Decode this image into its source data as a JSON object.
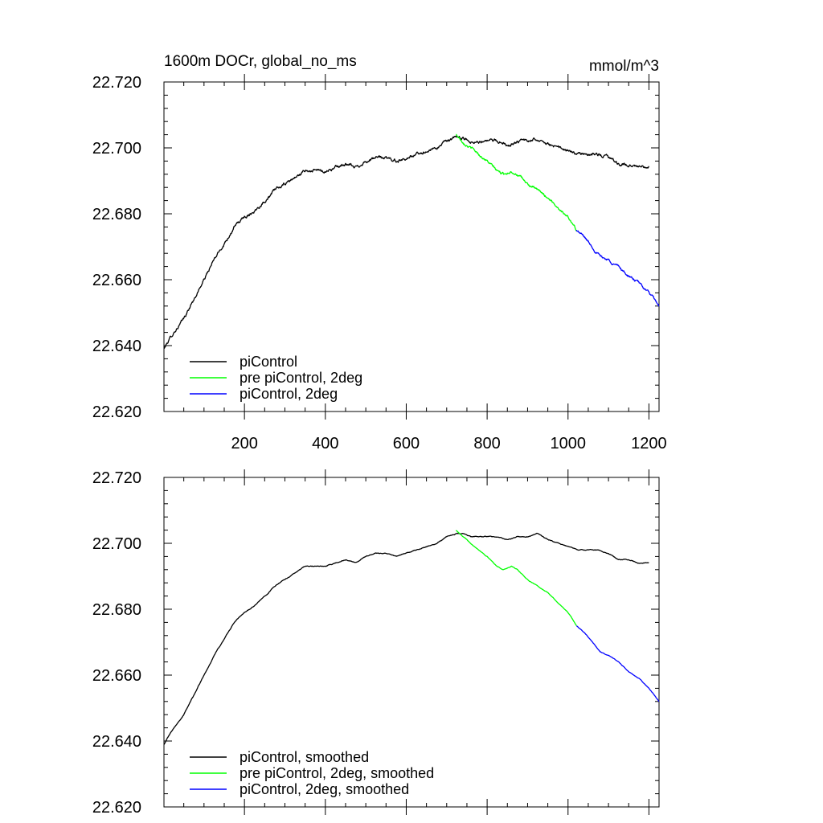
{
  "page": {
    "title": "1600m DOCr, global_no_ms",
    "units": "mmol/m^3"
  },
  "chart_data": [
    {
      "type": "line",
      "name": "raw",
      "title": "1600m DOCr, global_no_ms",
      "units_label": "mmol/m^3",
      "xlim": [
        1,
        1225
      ],
      "ylim": [
        22.62,
        22.72
      ],
      "x_ticks": [
        200,
        400,
        600,
        800,
        1000,
        1200
      ],
      "x_tick_labels": [
        "200",
        "400",
        "600",
        "800",
        "1000",
        "1200"
      ],
      "y_ticks": [
        22.62,
        22.64,
        22.66,
        22.68,
        22.7,
        22.72
      ],
      "y_tick_labels": [
        "22.620",
        "22.640",
        "22.660",
        "22.680",
        "22.700",
        "22.720"
      ],
      "legend_position": "bottom-left",
      "series": [
        {
          "name": "piControl",
          "color": "#000000",
          "noise": 0.0006,
          "x": [
            1,
            10,
            25,
            50,
            75,
            100,
            125,
            150,
            175,
            200,
            225,
            250,
            275,
            300,
            325,
            350,
            375,
            400,
            425,
            450,
            475,
            500,
            525,
            550,
            575,
            600,
            625,
            650,
            675,
            700,
            725,
            740,
            760,
            780,
            800,
            825,
            850,
            875,
            900,
            925,
            950,
            975,
            1000,
            1025,
            1050,
            1075,
            1100,
            1125,
            1150,
            1175,
            1200
          ],
          "y": [
            22.639,
            22.641,
            22.644,
            22.648,
            22.654,
            22.66,
            22.666,
            22.671,
            22.676,
            22.679,
            22.681,
            22.684,
            22.687,
            22.689,
            22.691,
            22.693,
            22.693,
            22.693,
            22.694,
            22.695,
            22.694,
            22.696,
            22.697,
            22.697,
            22.696,
            22.697,
            22.698,
            22.699,
            22.7,
            22.702,
            22.703,
            22.703,
            22.702,
            22.702,
            22.702,
            22.702,
            22.701,
            22.702,
            22.702,
            22.703,
            22.701,
            22.7,
            22.699,
            22.698,
            22.698,
            22.698,
            22.697,
            22.695,
            22.695,
            22.694,
            22.694
          ]
        },
        {
          "name": "pre piControl, 2deg",
          "color": "#00ff00",
          "noise": 0.0005,
          "x": [
            723,
            740,
            760,
            780,
            800,
            825,
            840,
            860,
            875,
            900,
            925,
            950,
            975,
            1000,
            1021
          ],
          "y": [
            22.704,
            22.702,
            22.7,
            22.698,
            22.696,
            22.693,
            22.692,
            22.693,
            22.692,
            22.689,
            22.687,
            22.685,
            22.682,
            22.679,
            22.675
          ]
        },
        {
          "name": "piControl, 2deg",
          "color": "#0000ff",
          "noise": 0.0005,
          "x": [
            1021,
            1040,
            1060,
            1080,
            1100,
            1125,
            1150,
            1175,
            1200,
            1225
          ],
          "y": [
            22.675,
            22.673,
            22.67,
            22.667,
            22.666,
            22.664,
            22.661,
            22.659,
            22.656,
            22.652
          ]
        }
      ]
    },
    {
      "type": "line",
      "name": "smoothed",
      "xlim": [
        1,
        1225
      ],
      "ylim": [
        22.62,
        22.72
      ],
      "x_ticks": [
        200,
        400,
        600,
        800,
        1000,
        1200
      ],
      "y_ticks": [
        22.62,
        22.64,
        22.66,
        22.68,
        22.7,
        22.72
      ],
      "y_tick_labels": [
        "22.620",
        "22.640",
        "22.660",
        "22.680",
        "22.700",
        "22.720"
      ],
      "legend_position": "bottom-left",
      "series": [
        {
          "name": "piControl, smoothed",
          "color": "#000000",
          "noise": 0.00015,
          "x": [
            1,
            10,
            25,
            50,
            75,
            100,
            125,
            150,
            175,
            200,
            225,
            250,
            275,
            300,
            325,
            350,
            375,
            400,
            425,
            450,
            475,
            500,
            525,
            550,
            575,
            600,
            625,
            650,
            675,
            700,
            725,
            740,
            760,
            780,
            800,
            825,
            850,
            875,
            900,
            925,
            950,
            975,
            1000,
            1025,
            1050,
            1075,
            1100,
            1125,
            1150,
            1175,
            1200
          ],
          "y": [
            22.639,
            22.641,
            22.644,
            22.648,
            22.654,
            22.66,
            22.666,
            22.671,
            22.676,
            22.679,
            22.681,
            22.684,
            22.687,
            22.689,
            22.691,
            22.693,
            22.693,
            22.693,
            22.694,
            22.695,
            22.694,
            22.696,
            22.697,
            22.697,
            22.696,
            22.697,
            22.698,
            22.699,
            22.7,
            22.702,
            22.703,
            22.703,
            22.702,
            22.702,
            22.702,
            22.702,
            22.701,
            22.702,
            22.702,
            22.703,
            22.701,
            22.7,
            22.699,
            22.698,
            22.698,
            22.698,
            22.697,
            22.695,
            22.695,
            22.694,
            22.694
          ]
        },
        {
          "name": "pre piControl, 2deg, smoothed",
          "color": "#00ff00",
          "noise": 0.00012,
          "x": [
            723,
            740,
            760,
            780,
            800,
            825,
            840,
            860,
            875,
            900,
            925,
            950,
            975,
            1000,
            1021
          ],
          "y": [
            22.704,
            22.702,
            22.7,
            22.698,
            22.696,
            22.693,
            22.692,
            22.693,
            22.692,
            22.689,
            22.687,
            22.685,
            22.682,
            22.679,
            22.675
          ]
        },
        {
          "name": "piControl, 2deg, smoothed",
          "color": "#0000ff",
          "noise": 0.00012,
          "x": [
            1021,
            1040,
            1060,
            1080,
            1100,
            1125,
            1150,
            1175,
            1200,
            1225
          ],
          "y": [
            22.675,
            22.673,
            22.67,
            22.667,
            22.666,
            22.664,
            22.661,
            22.659,
            22.656,
            22.652
          ]
        }
      ]
    }
  ]
}
